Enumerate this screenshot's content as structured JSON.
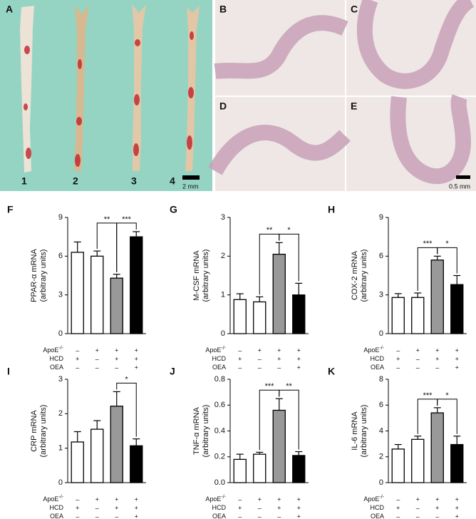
{
  "photo_panels": {
    "A": {
      "label": "A",
      "numbers": [
        "1",
        "2",
        "3",
        "4"
      ],
      "scale": "2 mm"
    },
    "micro": [
      {
        "label": "B"
      },
      {
        "label": "C"
      },
      {
        "label": "D"
      },
      {
        "label": "E",
        "scale": "0.5 mm"
      }
    ]
  },
  "conditions": [
    {
      "label": "ApoE",
      "sup": "-/-",
      "signs": [
        "–",
        "+",
        "+",
        "+"
      ]
    },
    {
      "label": "HCD",
      "signs": [
        "+",
        "–",
        "+",
        "+"
      ]
    },
    {
      "label": "OEA",
      "signs": [
        "–",
        "–",
        "–",
        "+"
      ]
    }
  ],
  "chart_data": [
    {
      "type": "bar",
      "panel": "F",
      "ylabel": "PPAR-α mRNA",
      "ylabel2": "(arbitrary units)",
      "colors": [
        "#ffffff",
        "#ffffff",
        "#999999",
        "#000000"
      ],
      "values": [
        6.3,
        6.0,
        4.3,
        7.5
      ],
      "errors": [
        0.8,
        0.4,
        0.3,
        0.4
      ],
      "ylim": [
        0,
        9
      ],
      "yticks": [
        0,
        3,
        6,
        9
      ],
      "significance": [
        {
          "bars": [
            1,
            2
          ],
          "label": "**"
        },
        {
          "bars": [
            2,
            3
          ],
          "label": "***"
        }
      ]
    },
    {
      "type": "bar",
      "panel": "G",
      "ylabel": "M-CSF mRNA",
      "ylabel2": "(arbitrary units)",
      "colors": [
        "#ffffff",
        "#ffffff",
        "#999999",
        "#000000"
      ],
      "values": [
        0.88,
        0.82,
        2.05,
        1.0
      ],
      "errors": [
        0.15,
        0.13,
        0.3,
        0.3
      ],
      "ylim": [
        0,
        3
      ],
      "yticks": [
        0,
        1,
        2,
        3
      ],
      "significance": [
        {
          "bars": [
            1,
            2
          ],
          "label": "**"
        },
        {
          "bars": [
            2,
            3
          ],
          "label": "*"
        }
      ]
    },
    {
      "type": "bar",
      "panel": "H",
      "ylabel": "COX-2 mRNA",
      "ylabel2": "(arbitrary units)",
      "colors": [
        "#ffffff",
        "#ffffff",
        "#999999",
        "#000000"
      ],
      "values": [
        2.8,
        2.8,
        5.7,
        3.8
      ],
      "errors": [
        0.3,
        0.35,
        0.3,
        0.7
      ],
      "ylim": [
        0,
        9
      ],
      "yticks": [
        0,
        3,
        6,
        9
      ],
      "significance": [
        {
          "bars": [
            1,
            2
          ],
          "label": "***"
        },
        {
          "bars": [
            2,
            3
          ],
          "label": "*"
        }
      ]
    },
    {
      "type": "bar",
      "panel": "I",
      "ylabel": "CRP mRNA",
      "ylabel2": "(arbitrary units)",
      "colors": [
        "#ffffff",
        "#ffffff",
        "#999999",
        "#000000"
      ],
      "values": [
        1.18,
        1.55,
        2.22,
        1.07
      ],
      "errors": [
        0.3,
        0.25,
        0.42,
        0.2
      ],
      "ylim": [
        0,
        3
      ],
      "yticks": [
        0,
        1,
        2,
        3
      ],
      "significance": [
        {
          "bars": [
            2,
            3
          ],
          "label": "*"
        }
      ]
    },
    {
      "type": "bar",
      "panel": "J",
      "ylabel": "TNF-α mRNA",
      "ylabel2": "(arbitrary units)",
      "colors": [
        "#ffffff",
        "#ffffff",
        "#999999",
        "#000000"
      ],
      "values": [
        0.18,
        0.22,
        0.56,
        0.21
      ],
      "errors": [
        0.04,
        0.015,
        0.09,
        0.03
      ],
      "ylim": [
        0,
        0.8
      ],
      "yticks": [
        {
          "value": 0,
          "label": "0.0"
        },
        0.2,
        0.4,
        0.6,
        0.8
      ],
      "significance": [
        {
          "bars": [
            1,
            2
          ],
          "label": "***"
        },
        {
          "bars": [
            2,
            3
          ],
          "label": "**"
        }
      ]
    },
    {
      "type": "bar",
      "panel": "K",
      "ylabel": "IL-6 mRNA",
      "ylabel2": "(arbitrary units)",
      "colors": [
        "#ffffff",
        "#ffffff",
        "#999999",
        "#000000"
      ],
      "values": [
        2.6,
        3.35,
        5.4,
        2.95
      ],
      "errors": [
        0.35,
        0.25,
        0.4,
        0.65
      ],
      "ylim": [
        0,
        8
      ],
      "yticks": [
        0,
        2,
        4,
        6,
        8
      ],
      "significance": [
        {
          "bars": [
            1,
            2
          ],
          "label": "***"
        },
        {
          "bars": [
            2,
            3
          ],
          "label": "*"
        }
      ]
    }
  ]
}
